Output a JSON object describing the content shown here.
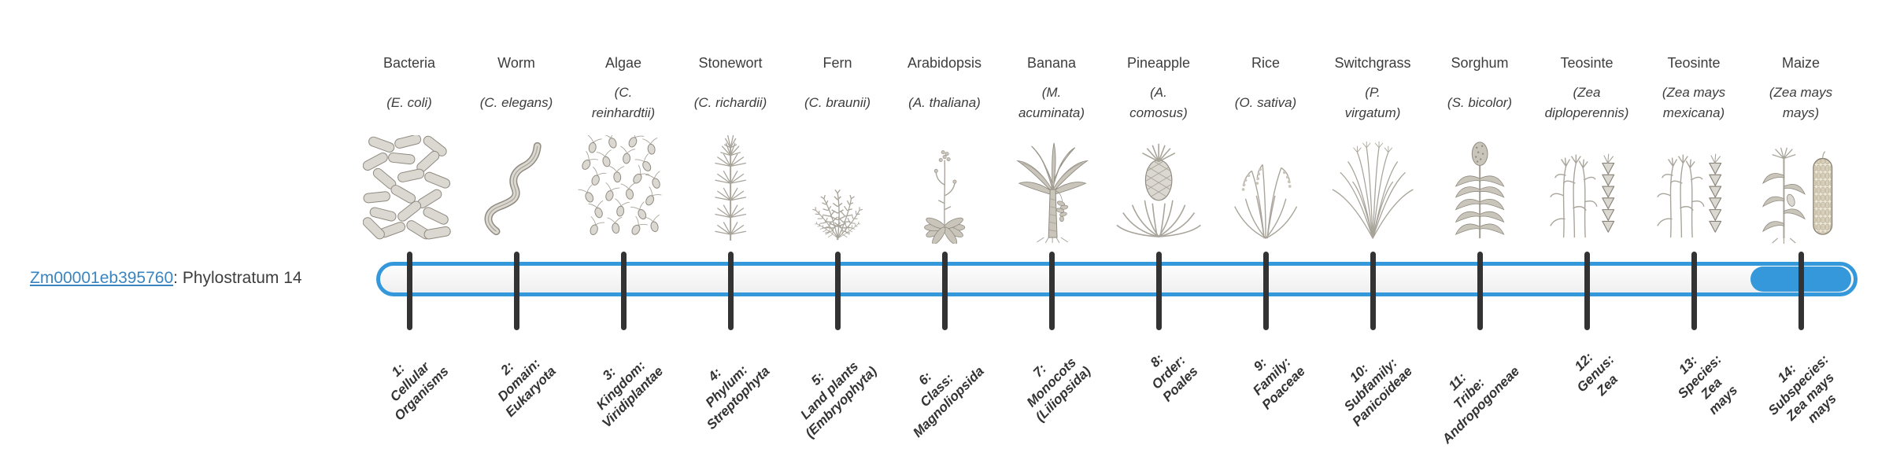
{
  "gene": {
    "id": "Zm00001eb395760",
    "suffix": ": Phylostratum 14"
  },
  "timeline": {
    "bar_outline_color": "#3498db",
    "highlight_color": "#3498db",
    "tick_color": "#333333",
    "highlighted_stratum": 14
  },
  "colors": {
    "link": "#3a85c0",
    "text": "#3d3d3d",
    "stratum_label": "#333333"
  },
  "organisms": [
    {
      "common": "Bacteria",
      "scientific": "(E. coli)",
      "stratum_label": "1:\nCellular\nOrganisms",
      "icon": "bacteria-icon"
    },
    {
      "common": "Worm",
      "scientific": "(C. elegans)",
      "stratum_label": "2:\nDomain:\nEukaryota",
      "icon": "worm-icon"
    },
    {
      "common": "Algae",
      "scientific": "(C.\nreinhardtii)",
      "stratum_label": "3:\nKingdom:\nViridiplantae",
      "icon": "algae-icon"
    },
    {
      "common": "Stonewort",
      "scientific": "(C. richardii)",
      "stratum_label": "4:\nPhylum:\nStreptophyta",
      "icon": "stonewort-icon"
    },
    {
      "common": "Fern",
      "scientific": "(C. braunii)",
      "stratum_label": "5:\nLand plants\n(Embryophyta)",
      "icon": "fern-icon"
    },
    {
      "common": "Arabidopsis",
      "scientific": "(A. thaliana)",
      "stratum_label": "6:\nClass:\nMagnoliopsida",
      "icon": "arabidopsis-icon"
    },
    {
      "common": "Banana",
      "scientific": "(M.\nacuminata)",
      "stratum_label": "7:\nMonocots\n(Liliopsida)",
      "icon": "banana-icon"
    },
    {
      "common": "Pineapple",
      "scientific": "(A.\ncomosus)",
      "stratum_label": "8:\nOrder:\nPoales",
      "icon": "pineapple-icon"
    },
    {
      "common": "Rice",
      "scientific": "(O. sativa)",
      "stratum_label": "9:\nFamily:\nPoaceae",
      "icon": "rice-icon"
    },
    {
      "common": "Switchgrass",
      "scientific": "(P.\nvirgatum)",
      "stratum_label": "10:\nSubfamily:\nPanicoideae",
      "icon": "switchgrass-icon"
    },
    {
      "common": "Sorghum",
      "scientific": "(S. bicolor)",
      "stratum_label": "11:\nTribe:\nAndropogoneae",
      "icon": "sorghum-icon"
    },
    {
      "common": "Teosinte",
      "scientific": "(Zea\ndiploperennis)",
      "stratum_label": "12:\nGenus:\nZea",
      "icon": "teosinte-icon"
    },
    {
      "common": "Teosinte",
      "scientific": "(Zea mays\nmexicana)",
      "stratum_label": "13:\nSpecies:\nZea\nmays",
      "icon": "teosinte-icon"
    },
    {
      "common": "Maize",
      "scientific": "(Zea mays\nmays)",
      "stratum_label": "14:\nSubspecies:\nZea mays\nmays",
      "icon": "maize-icon"
    }
  ]
}
